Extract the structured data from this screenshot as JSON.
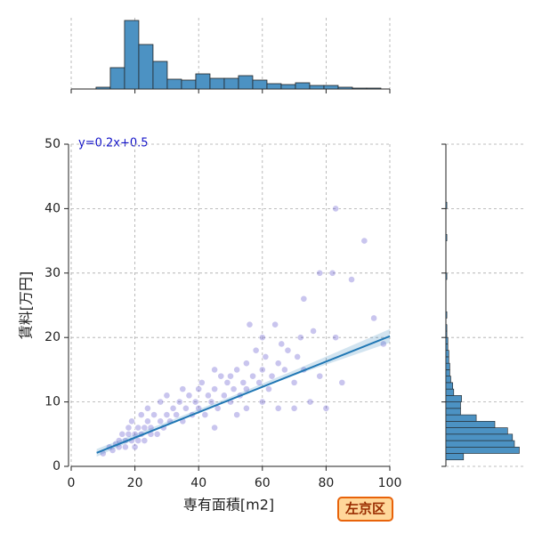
{
  "chart_data": [
    {
      "type": "scatter",
      "xlabel": "専有面積[m2]",
      "ylabel": "賃料[万円]",
      "x": [
        10,
        12,
        13,
        14,
        15,
        15,
        16,
        17,
        17,
        18,
        18,
        19,
        19,
        20,
        20,
        21,
        21,
        22,
        22,
        23,
        23,
        24,
        24,
        25,
        25,
        26,
        27,
        28,
        28,
        29,
        30,
        30,
        31,
        32,
        33,
        34,
        35,
        35,
        36,
        37,
        38,
        39,
        40,
        40,
        41,
        42,
        43,
        44,
        45,
        45,
        46,
        47,
        48,
        49,
        50,
        50,
        51,
        52,
        53,
        54,
        55,
        55,
        56,
        57,
        58,
        59,
        60,
        60,
        61,
        62,
        63,
        64,
        65,
        66,
        67,
        68,
        70,
        71,
        72,
        73,
        75,
        76,
        78,
        80,
        82,
        83,
        85,
        88,
        92,
        95,
        98,
        45,
        52,
        55,
        60,
        65,
        70,
        73,
        78,
        83
      ],
      "values": [
        2,
        3,
        2.5,
        3.5,
        3,
        4,
        5,
        4,
        3,
        5,
        6,
        4,
        7,
        5,
        3,
        6,
        4,
        8,
        5,
        6,
        4,
        7,
        9,
        5,
        6,
        8,
        5,
        7,
        10,
        6,
        8,
        11,
        7,
        9,
        8,
        10,
        7,
        12,
        9,
        11,
        8,
        10,
        12,
        9,
        13,
        8,
        11,
        10,
        12,
        15,
        9,
        14,
        11,
        13,
        10,
        14,
        12,
        15,
        11,
        13,
        16,
        12,
        22,
        14,
        18,
        13,
        15,
        20,
        17,
        12,
        14,
        22,
        16,
        19,
        15,
        18,
        13,
        17,
        20,
        15,
        10,
        21,
        14,
        9,
        30,
        40,
        13,
        29,
        35,
        23,
        19,
        6,
        8,
        9,
        10,
        9,
        9,
        26,
        30,
        20
      ],
      "color": "#4b3fc8",
      "regression": {
        "x": [
          8,
          100
        ],
        "values": [
          2.1,
          20.2
        ],
        "color": "#1f77b4",
        "band_x": [
          8,
          30,
          50,
          70,
          100
        ],
        "band_lower": [
          1.5,
          6.4,
          10.3,
          14.1,
          19.2
        ],
        "band_upper": [
          2.7,
          6.9,
          10.8,
          14.9,
          21.3
        ]
      },
      "annotation": "y=0.2x+0.5",
      "label": "左京区",
      "xlim": [
        0,
        100
      ],
      "ylim": [
        0,
        50
      ],
      "xticks": [
        0,
        20,
        40,
        60,
        80,
        100
      ],
      "yticks": [
        0,
        10,
        20,
        30,
        40,
        50
      ],
      "grid": true
    },
    {
      "type": "histogram",
      "orientation": "vertical",
      "color": "#4c92c3",
      "bins": [
        7.8,
        12.27,
        16.74,
        21.21,
        25.68,
        30.15,
        34.62,
        39.09,
        43.56,
        48.03,
        52.5,
        56.97,
        61.44,
        65.91,
        70.38,
        74.85,
        79.32,
        83.79,
        88.26,
        92.73,
        97.2
      ],
      "counts": [
        2,
        24,
        77,
        50,
        31,
        11,
        10,
        17,
        12,
        12,
        15,
        10,
        6,
        5,
        7,
        4,
        4,
        2,
        1,
        1
      ],
      "ylim": [
        0,
        80
      ],
      "grid": true
    },
    {
      "type": "histogram",
      "orientation": "horizontal",
      "color": "#4c92c3",
      "bins": [
        1,
        2,
        3,
        4,
        5,
        6,
        7,
        8,
        9,
        10,
        11,
        12,
        13,
        14,
        15,
        16,
        17,
        18,
        19,
        20,
        21,
        22,
        23,
        24,
        25,
        26,
        27,
        28,
        29,
        30,
        31,
        32,
        33,
        34,
        35,
        36,
        37,
        38,
        39,
        40,
        41
      ],
      "counts": [
        18,
        75,
        70,
        68,
        63,
        50,
        31,
        15,
        15,
        16,
        8,
        7,
        5,
        4,
        4,
        3,
        3,
        2,
        2,
        1,
        1,
        0,
        1,
        0,
        0,
        0,
        0,
        0,
        1,
        0,
        0,
        0,
        0,
        0,
        1,
        0,
        0,
        0,
        0,
        1
      ],
      "xlim": [
        0,
        80
      ],
      "grid": true
    }
  ]
}
